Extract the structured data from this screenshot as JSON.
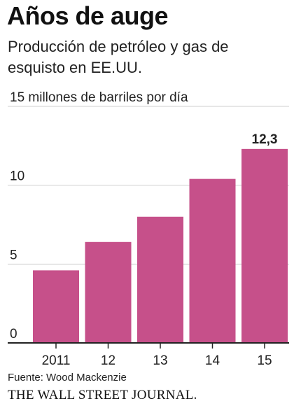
{
  "header": {
    "title": "Años de auge",
    "subtitle": "Producción de petróleo y gas de esquisto en EE.UU."
  },
  "footer": {
    "source": "Fuente: Wood Mackenzie",
    "publisher": "THE WALL STREET JOURNAL."
  },
  "colors": {
    "bar": "#c6508a",
    "gridline": "#cfcfcf",
    "axis": "#222222"
  },
  "chart_data": {
    "type": "bar",
    "ylabel": "15 millones de barriles por día",
    "ylim": [
      0,
      15
    ],
    "yticks": [
      {
        "value": 0,
        "label": "0"
      },
      {
        "value": 5,
        "label": "5"
      },
      {
        "value": 10,
        "label": "10"
      },
      {
        "value": 15,
        "label": "15 millones de barriles por día"
      }
    ],
    "categories": [
      "2011",
      "12",
      "13",
      "14",
      "15"
    ],
    "values": [
      4.6,
      6.4,
      8.0,
      10.4,
      12.3
    ],
    "data_labels": [
      null,
      null,
      null,
      null,
      "12,3"
    ],
    "grid": true,
    "legend": "none"
  }
}
